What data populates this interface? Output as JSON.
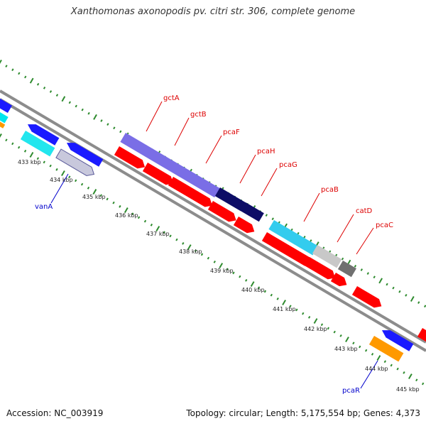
{
  "title": "Xanthomonas axonopodis pv. citri str. 306, complete genome",
  "accession": "Accession: NC_003919",
  "topology": "Topology: circular; Length: 5,175,554 bp; Genes: 4,373",
  "colors": {
    "backbone": "#8c8c8c",
    "tick": "#2e8b2e",
    "label_red": "#dd0000",
    "label_blue": "#0000cc",
    "kbp_text": "#222222"
  },
  "kbp_labels": [
    "433 kbp",
    "434 kbp",
    "435 kbp",
    "436 kbp",
    "437 kbp",
    "438 kbp",
    "439 kbp",
    "440 kbp",
    "441 kbp",
    "442 kbp",
    "443 kbp",
    "444 kbp",
    "445 kbp"
  ],
  "gene_labels": [
    {
      "text": "gctA",
      "color": "red"
    },
    {
      "text": "gctB",
      "color": "red"
    },
    {
      "text": "pcaF",
      "color": "red"
    },
    {
      "text": "pcaH",
      "color": "red"
    },
    {
      "text": "pcaG",
      "color": "red"
    },
    {
      "text": "pcaB",
      "color": "red"
    },
    {
      "text": "catD",
      "color": "red"
    },
    {
      "text": "pcaC",
      "color": "red"
    },
    {
      "text": "vanA",
      "color": "blue"
    },
    {
      "text": "pcaR",
      "color": "blue"
    }
  ],
  "features": [
    {
      "name": "blue-gene-1",
      "fill": "#1a1aff"
    },
    {
      "name": "cyan-gene-1",
      "fill": "#00e5ee"
    },
    {
      "name": "orange-gene-1",
      "fill": "#ff9900"
    },
    {
      "name": "blue-gene-2",
      "fill": "#1a1aff"
    },
    {
      "name": "cyan-gene-2",
      "fill": "#22e6ee"
    },
    {
      "name": "blue-gene-3",
      "fill": "#1a1aff"
    },
    {
      "name": "vanA-gene",
      "fill": "#c8c8dc"
    },
    {
      "name": "gctA-gene",
      "fill": "#7a6ee6"
    },
    {
      "name": "red-gene-1",
      "fill": "#ff0000"
    },
    {
      "name": "red-gene-2",
      "fill": "#ff0000"
    },
    {
      "name": "red-gene-3",
      "fill": "#ff0000"
    },
    {
      "name": "pcaH-gene",
      "fill": "#0d0d66"
    },
    {
      "name": "pcaG-gene",
      "fill": "#0d0d66"
    },
    {
      "name": "red-gene-4",
      "fill": "#ff0000"
    },
    {
      "name": "red-gene-5",
      "fill": "#ff0000"
    },
    {
      "name": "pcaB-gene",
      "fill": "#33ccee"
    },
    {
      "name": "catD-gene",
      "fill": "#c8c8c8"
    },
    {
      "name": "pcaC-gene",
      "fill": "#707070"
    },
    {
      "name": "red-gene-6",
      "fill": "#ff0000"
    },
    {
      "name": "red-gene-7",
      "fill": "#ff0000"
    },
    {
      "name": "red-gene-8",
      "fill": "#ff0000"
    },
    {
      "name": "red-gene-9",
      "fill": "#ff0000"
    },
    {
      "name": "blue-gene-4",
      "fill": "#1a1aff"
    },
    {
      "name": "orange-gene-2",
      "fill": "#ff9900"
    },
    {
      "name": "red-gene-10",
      "fill": "#ff0000"
    }
  ]
}
